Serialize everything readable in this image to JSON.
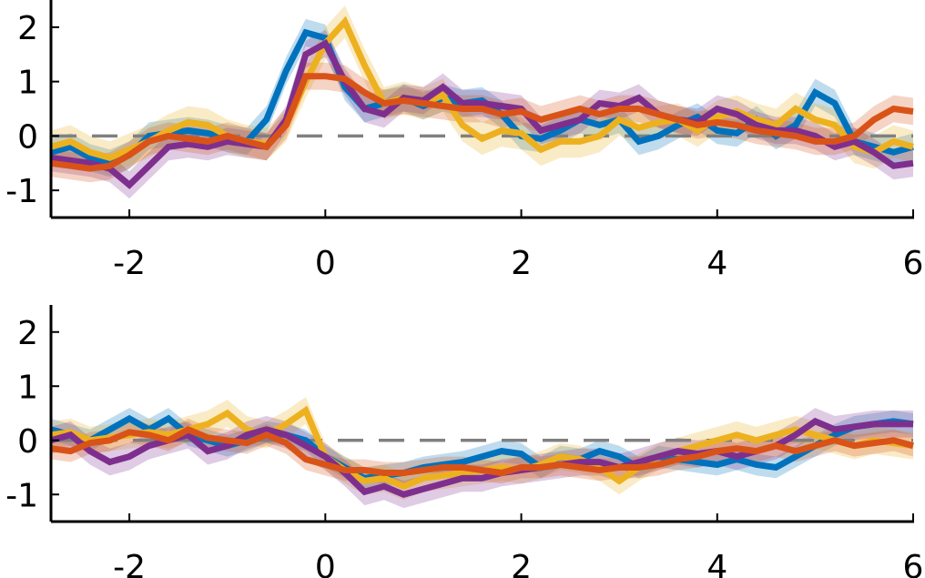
{
  "chart_data": [
    {
      "type": "line",
      "xlim": [
        -2.8,
        6
      ],
      "ylim": [
        -1.5,
        2.5
      ],
      "xticks": [
        "-2",
        "0",
        "2",
        "4",
        "6"
      ],
      "yticks": [
        "-1",
        "0",
        "1",
        "2"
      ],
      "grid": false,
      "reference_line": {
        "y": 0,
        "style": "dashed",
        "color": "#808080"
      },
      "series": [
        {
          "color": "#0072BD",
          "band": 0.25,
          "x": [
            -2.8,
            -2.6,
            -2.4,
            -2.2,
            -2.0,
            -1.8,
            -1.6,
            -1.4,
            -1.2,
            -1.0,
            -0.8,
            -0.6,
            -0.4,
            -0.2,
            0.0,
            0.2,
            0.4,
            0.6,
            0.8,
            1.0,
            1.2,
            1.4,
            1.6,
            1.8,
            2.0,
            2.2,
            2.4,
            2.6,
            2.8,
            3.0,
            3.2,
            3.4,
            3.6,
            3.8,
            4.0,
            4.2,
            4.4,
            4.6,
            4.8,
            5.0,
            5.2,
            5.4,
            5.6,
            5.8,
            6.0
          ],
          "y": [
            -0.3,
            -0.2,
            -0.4,
            -0.5,
            -0.35,
            0.0,
            0.05,
            0.1,
            0.05,
            -0.05,
            -0.1,
            0.3,
            1.2,
            1.9,
            1.8,
            0.9,
            0.5,
            0.6,
            0.7,
            0.55,
            0.7,
            0.6,
            0.65,
            0.4,
            0.0,
            -0.05,
            0.1,
            0.3,
            0.2,
            0.3,
            -0.1,
            0.0,
            0.2,
            0.35,
            0.1,
            0.05,
            0.3,
            0.0,
            0.2,
            0.8,
            0.6,
            -0.1,
            -0.2,
            -0.3,
            -0.2
          ]
        },
        {
          "color": "#EDB120",
          "band": 0.3,
          "x": [
            -2.8,
            -2.6,
            -2.4,
            -2.2,
            -2.0,
            -1.8,
            -1.6,
            -1.4,
            -1.2,
            -1.0,
            -0.8,
            -0.6,
            -0.4,
            -0.2,
            0.0,
            0.2,
            0.4,
            0.6,
            0.8,
            1.0,
            1.2,
            1.4,
            1.6,
            1.8,
            2.0,
            2.2,
            2.4,
            2.6,
            2.8,
            3.0,
            3.2,
            3.4,
            3.6,
            3.8,
            4.0,
            4.2,
            4.4,
            4.6,
            4.8,
            5.0,
            5.2,
            5.4,
            5.6,
            5.8,
            6.0
          ],
          "y": [
            -0.2,
            -0.1,
            -0.3,
            -0.4,
            -0.25,
            -0.1,
            0.1,
            0.25,
            0.2,
            0.0,
            -0.1,
            -0.15,
            0.2,
            1.0,
            1.7,
            2.1,
            1.3,
            0.6,
            0.7,
            0.6,
            0.75,
            0.2,
            -0.05,
            0.1,
            0.05,
            -0.25,
            -0.1,
            -0.1,
            0.0,
            0.3,
            0.15,
            0.25,
            0.3,
            0.1,
            0.35,
            0.45,
            0.3,
            0.2,
            0.5,
            0.3,
            0.2,
            -0.2,
            -0.3,
            -0.1,
            -0.2
          ]
        },
        {
          "color": "#7E2F8E",
          "band": 0.25,
          "x": [
            -2.8,
            -2.6,
            -2.4,
            -2.2,
            -2.0,
            -1.8,
            -1.6,
            -1.4,
            -1.2,
            -1.0,
            -0.8,
            -0.6,
            -0.4,
            -0.2,
            0.0,
            0.2,
            0.4,
            0.6,
            0.8,
            1.0,
            1.2,
            1.4,
            1.6,
            1.8,
            2.0,
            2.2,
            2.4,
            2.6,
            2.8,
            3.0,
            3.2,
            3.4,
            3.6,
            3.8,
            4.0,
            4.2,
            4.4,
            4.6,
            4.8,
            5.0,
            5.2,
            5.4,
            5.6,
            5.8,
            6.0
          ],
          "y": [
            -0.4,
            -0.45,
            -0.5,
            -0.6,
            -0.9,
            -0.55,
            -0.2,
            -0.15,
            -0.2,
            -0.1,
            -0.15,
            -0.2,
            0.3,
            1.5,
            1.7,
            1.0,
            0.5,
            0.4,
            0.7,
            0.65,
            0.9,
            0.6,
            0.6,
            0.55,
            0.5,
            0.1,
            0.2,
            0.3,
            0.6,
            0.55,
            0.7,
            0.4,
            0.3,
            0.25,
            0.5,
            0.4,
            0.2,
            0.1,
            0.1,
            0.0,
            -0.2,
            -0.1,
            -0.3,
            -0.55,
            -0.5
          ]
        },
        {
          "color": "#D95319",
          "band": 0.25,
          "x": [
            -2.8,
            -2.6,
            -2.4,
            -2.2,
            -2.0,
            -1.8,
            -1.6,
            -1.4,
            -1.2,
            -1.0,
            -0.8,
            -0.6,
            -0.4,
            -0.2,
            0.0,
            0.2,
            0.4,
            0.6,
            0.8,
            1.0,
            1.2,
            1.4,
            1.6,
            1.8,
            2.0,
            2.2,
            2.4,
            2.6,
            2.8,
            3.0,
            3.2,
            3.4,
            3.6,
            3.8,
            4.0,
            4.2,
            4.4,
            4.6,
            4.8,
            5.0,
            5.2,
            5.4,
            5.6,
            5.8,
            6.0
          ],
          "y": [
            -0.5,
            -0.55,
            -0.6,
            -0.55,
            -0.35,
            -0.1,
            0.0,
            -0.05,
            -0.1,
            0.0,
            -0.1,
            -0.2,
            0.2,
            1.1,
            1.1,
            1.05,
            0.8,
            0.6,
            0.65,
            0.6,
            0.55,
            0.5,
            0.5,
            0.4,
            0.45,
            0.3,
            0.4,
            0.5,
            0.4,
            0.5,
            0.5,
            0.4,
            0.3,
            0.2,
            0.25,
            0.2,
            0.1,
            0.05,
            0.0,
            -0.1,
            -0.1,
            0.0,
            0.3,
            0.5,
            0.45
          ]
        }
      ]
    },
    {
      "type": "line",
      "xlim": [
        -2.8,
        6
      ],
      "ylim": [
        -1.5,
        2.5
      ],
      "xticks": [
        "-2",
        "0",
        "2",
        "4",
        "6"
      ],
      "yticks": [
        "-1",
        "0",
        "1",
        "2"
      ],
      "grid": false,
      "reference_line": {
        "y": 0,
        "style": "dashed",
        "color": "#808080"
      },
      "series": [
        {
          "color": "#0072BD",
          "band": 0.2,
          "x": [
            -2.8,
            -2.6,
            -2.4,
            -2.2,
            -2.0,
            -1.8,
            -1.6,
            -1.4,
            -1.2,
            -1.0,
            -0.8,
            -0.6,
            -0.4,
            -0.2,
            0.0,
            0.2,
            0.4,
            0.6,
            0.8,
            1.0,
            1.2,
            1.4,
            1.6,
            1.8,
            2.0,
            2.2,
            2.4,
            2.6,
            2.8,
            3.0,
            3.2,
            3.4,
            3.6,
            3.8,
            4.0,
            4.2,
            4.4,
            4.6,
            4.8,
            5.0,
            5.2,
            5.4,
            5.6,
            5.8,
            6.0
          ],
          "y": [
            0.2,
            0.1,
            0.0,
            0.2,
            0.4,
            0.2,
            0.4,
            0.1,
            0.0,
            -0.1,
            0.0,
            0.15,
            0.1,
            0.0,
            -0.3,
            -0.5,
            -0.7,
            -0.65,
            -0.6,
            -0.5,
            -0.45,
            -0.4,
            -0.3,
            -0.2,
            -0.25,
            -0.5,
            -0.3,
            -0.35,
            -0.2,
            -0.3,
            -0.5,
            -0.3,
            -0.35,
            -0.4,
            -0.45,
            -0.35,
            -0.45,
            -0.5,
            -0.3,
            -0.1,
            0.1,
            0.25,
            0.3,
            0.35,
            0.3
          ]
        },
        {
          "color": "#EDB120",
          "band": 0.25,
          "x": [
            -2.8,
            -2.6,
            -2.4,
            -2.2,
            -2.0,
            -1.8,
            -1.6,
            -1.4,
            -1.2,
            -1.0,
            -0.8,
            -0.6,
            -0.4,
            -0.2,
            0.0,
            0.2,
            0.4,
            0.6,
            0.8,
            1.0,
            1.2,
            1.4,
            1.6,
            1.8,
            2.0,
            2.2,
            2.4,
            2.6,
            2.8,
            3.0,
            3.2,
            3.4,
            3.6,
            3.8,
            4.0,
            4.2,
            4.4,
            4.6,
            4.8,
            5.0,
            5.2,
            5.4,
            5.6,
            5.8,
            6.0
          ],
          "y": [
            0.1,
            0.15,
            0.0,
            0.05,
            0.1,
            0.15,
            0.1,
            0.2,
            0.3,
            0.5,
            0.2,
            0.1,
            0.3,
            0.55,
            -0.3,
            -0.55,
            -0.75,
            -0.7,
            -0.85,
            -0.7,
            -0.65,
            -0.6,
            -0.55,
            -0.5,
            -0.55,
            -0.45,
            -0.3,
            -0.35,
            -0.5,
            -0.75,
            -0.5,
            -0.3,
            -0.2,
            -0.1,
            0.0,
            0.1,
            0.0,
            0.1,
            0.2,
            0.1,
            0.0,
            -0.1,
            0.0,
            -0.05,
            -0.1
          ]
        },
        {
          "color": "#7E2F8E",
          "band": 0.25,
          "x": [
            -2.8,
            -2.6,
            -2.4,
            -2.2,
            -2.0,
            -1.8,
            -1.6,
            -1.4,
            -1.2,
            -1.0,
            -0.8,
            -0.6,
            -0.4,
            -0.2,
            0.0,
            0.2,
            0.4,
            0.6,
            0.8,
            1.0,
            1.2,
            1.4,
            1.6,
            1.8,
            2.0,
            2.2,
            2.4,
            2.6,
            2.8,
            3.0,
            3.2,
            3.4,
            3.6,
            3.8,
            4.0,
            4.2,
            4.4,
            4.6,
            4.8,
            5.0,
            5.2,
            5.4,
            5.6,
            5.8,
            6.0
          ],
          "y": [
            0.0,
            0.1,
            -0.2,
            -0.4,
            -0.3,
            -0.1,
            0.0,
            0.1,
            -0.2,
            -0.1,
            0.1,
            0.2,
            0.1,
            -0.1,
            -0.3,
            -0.6,
            -0.95,
            -0.85,
            -1.0,
            -0.9,
            -0.8,
            -0.7,
            -0.7,
            -0.6,
            -0.55,
            -0.5,
            -0.45,
            -0.4,
            -0.4,
            -0.5,
            -0.4,
            -0.3,
            -0.2,
            -0.25,
            -0.2,
            -0.3,
            -0.2,
            -0.1,
            0.1,
            0.35,
            0.2,
            0.25,
            0.3,
            0.3,
            0.3
          ]
        },
        {
          "color": "#D95319",
          "band": 0.2,
          "x": [
            -2.8,
            -2.6,
            -2.4,
            -2.2,
            -2.0,
            -1.8,
            -1.6,
            -1.4,
            -1.2,
            -1.0,
            -0.8,
            -0.6,
            -0.4,
            -0.2,
            0.0,
            0.2,
            0.4,
            0.6,
            0.8,
            1.0,
            1.2,
            1.4,
            1.6,
            1.8,
            2.0,
            2.2,
            2.4,
            2.6,
            2.8,
            3.0,
            3.2,
            3.4,
            3.6,
            3.8,
            4.0,
            4.2,
            4.4,
            4.6,
            4.8,
            5.0,
            5.2,
            5.4,
            5.6,
            5.8,
            6.0
          ],
          "y": [
            -0.15,
            -0.2,
            -0.05,
            0.0,
            0.15,
            0.1,
            0.0,
            0.2,
            0.05,
            0.0,
            -0.05,
            0.1,
            -0.05,
            -0.35,
            -0.45,
            -0.55,
            -0.55,
            -0.6,
            -0.6,
            -0.55,
            -0.5,
            -0.5,
            -0.55,
            -0.6,
            -0.5,
            -0.5,
            -0.45,
            -0.5,
            -0.55,
            -0.5,
            -0.5,
            -0.45,
            -0.35,
            -0.3,
            -0.2,
            -0.15,
            -0.2,
            -0.1,
            -0.2,
            -0.1,
            0.0,
            -0.1,
            -0.05,
            0.0,
            -0.1
          ]
        }
      ]
    }
  ]
}
